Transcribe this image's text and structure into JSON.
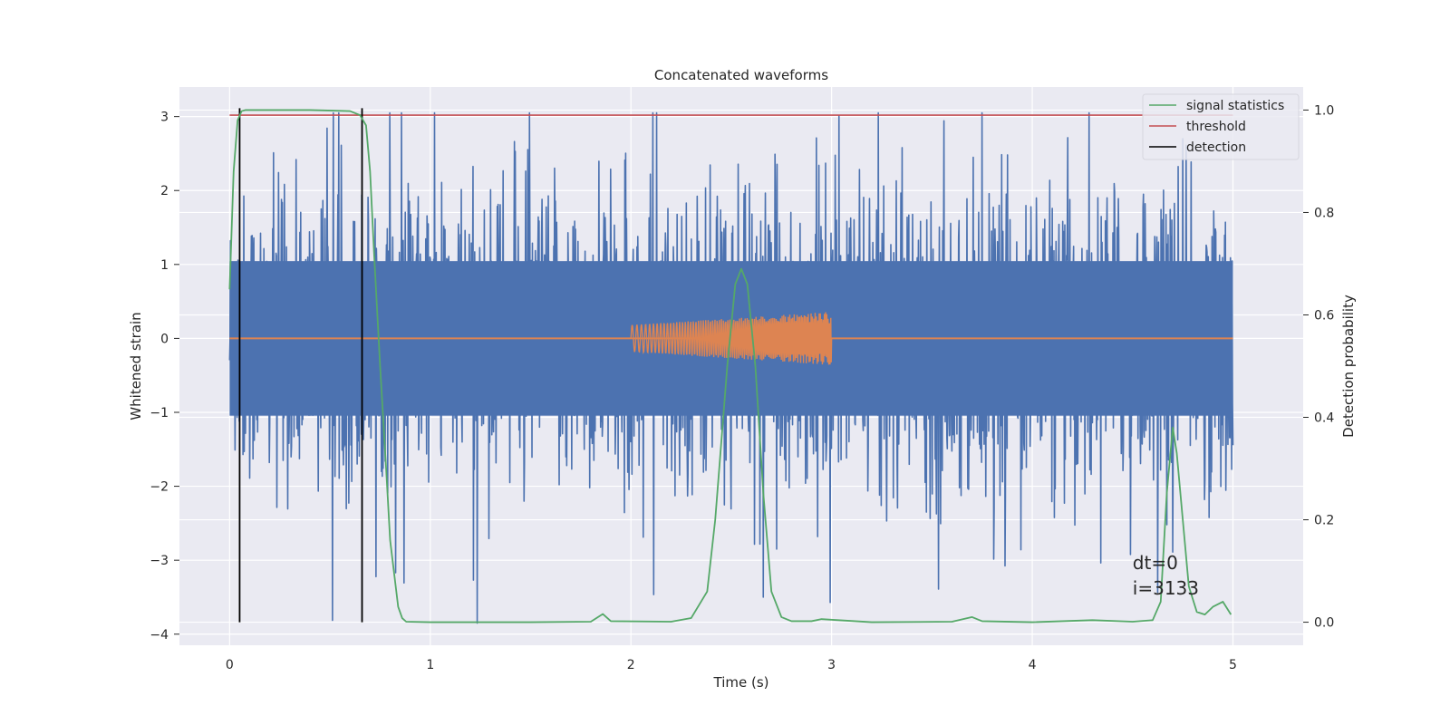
{
  "chart_data": {
    "type": "line",
    "title": "Concatenated waveforms",
    "xlabel": "Time (s)",
    "ylabel_left": "Whitened strain",
    "ylabel_right": "Detection probability",
    "xlim": [
      -0.25,
      5.35
    ],
    "ylim_left": [
      -4.15,
      3.4
    ],
    "ylim_right": [
      -0.045,
      1.045
    ],
    "x_ticks": [
      "0",
      "1",
      "2",
      "3",
      "4",
      "5"
    ],
    "y_left_ticks": [
      "−4",
      "−3",
      "−2",
      "−1",
      "0",
      "1",
      "2",
      "3"
    ],
    "y_right_ticks": [
      "0.0",
      "0.2",
      "0.4",
      "0.6",
      "0.8",
      "1.0"
    ],
    "grid": true,
    "legend_position": "top-right",
    "series": [
      {
        "name": "signal statistics",
        "axis": "right",
        "color": "#55a868",
        "x": [
          0,
          0.02,
          0.04,
          0.06,
          0.08,
          0.12,
          0.2,
          0.4,
          0.6,
          0.65,
          0.68,
          0.7,
          0.72,
          0.75,
          0.78,
          0.8,
          0.84,
          0.86,
          0.88,
          1.0,
          1.5,
          1.8,
          1.86,
          1.9,
          2.2,
          2.3,
          2.38,
          2.42,
          2.48,
          2.52,
          2.55,
          2.58,
          2.62,
          2.66,
          2.7,
          2.75,
          2.8,
          2.9,
          2.95,
          3.2,
          3.6,
          3.7,
          3.75,
          4.0,
          4.3,
          4.5,
          4.6,
          4.64,
          4.67,
          4.7,
          4.72,
          4.75,
          4.78,
          4.82,
          4.86,
          4.9,
          4.95,
          4.99
        ],
        "y": [
          0.65,
          0.88,
          0.98,
          0.998,
          1.0,
          1.0,
          1.0,
          1.0,
          0.998,
          0.99,
          0.97,
          0.88,
          0.72,
          0.5,
          0.3,
          0.16,
          0.03,
          0.008,
          0.001,
          0.0,
          0.0,
          0.001,
          0.016,
          0.002,
          0.001,
          0.008,
          0.06,
          0.2,
          0.5,
          0.66,
          0.69,
          0.66,
          0.5,
          0.25,
          0.06,
          0.01,
          0.002,
          0.002,
          0.006,
          0.0,
          0.001,
          0.01,
          0.002,
          0.0,
          0.004,
          0.001,
          0.004,
          0.04,
          0.25,
          0.38,
          0.33,
          0.2,
          0.07,
          0.02,
          0.015,
          0.03,
          0.04,
          0.015
        ]
      },
      {
        "name": "threshold",
        "axis": "right",
        "color": "#c44e52",
        "x": [
          0,
          5
        ],
        "y": [
          0.99,
          0.99
        ]
      },
      {
        "name": "detection",
        "axis": "right",
        "color": "#000000",
        "x": [
          0.05,
          0.66
        ],
        "y_range": [
          0,
          1.0
        ]
      },
      {
        "name": "",
        "axis": "left",
        "color": "#4c72b0",
        "type": "noise",
        "x_range": [
          0,
          5
        ],
        "body_range": [
          -1.1,
          1.1
        ],
        "peak_range": [
          -3.85,
          3.05
        ]
      },
      {
        "name": "",
        "axis": "left",
        "color": "#dd8452",
        "type": "chirp",
        "baseline": 0,
        "x_range": [
          2.0,
          3.0
        ],
        "amplitude_range": [
          0.18,
          0.36
        ]
      }
    ],
    "annotations": [
      "dt=0",
      "i=3133"
    ],
    "annotation_x": 4.5
  },
  "colors": {
    "plot_background": "#eaeaf2",
    "grid": "#ffffff",
    "page_background": "#ffffff"
  }
}
